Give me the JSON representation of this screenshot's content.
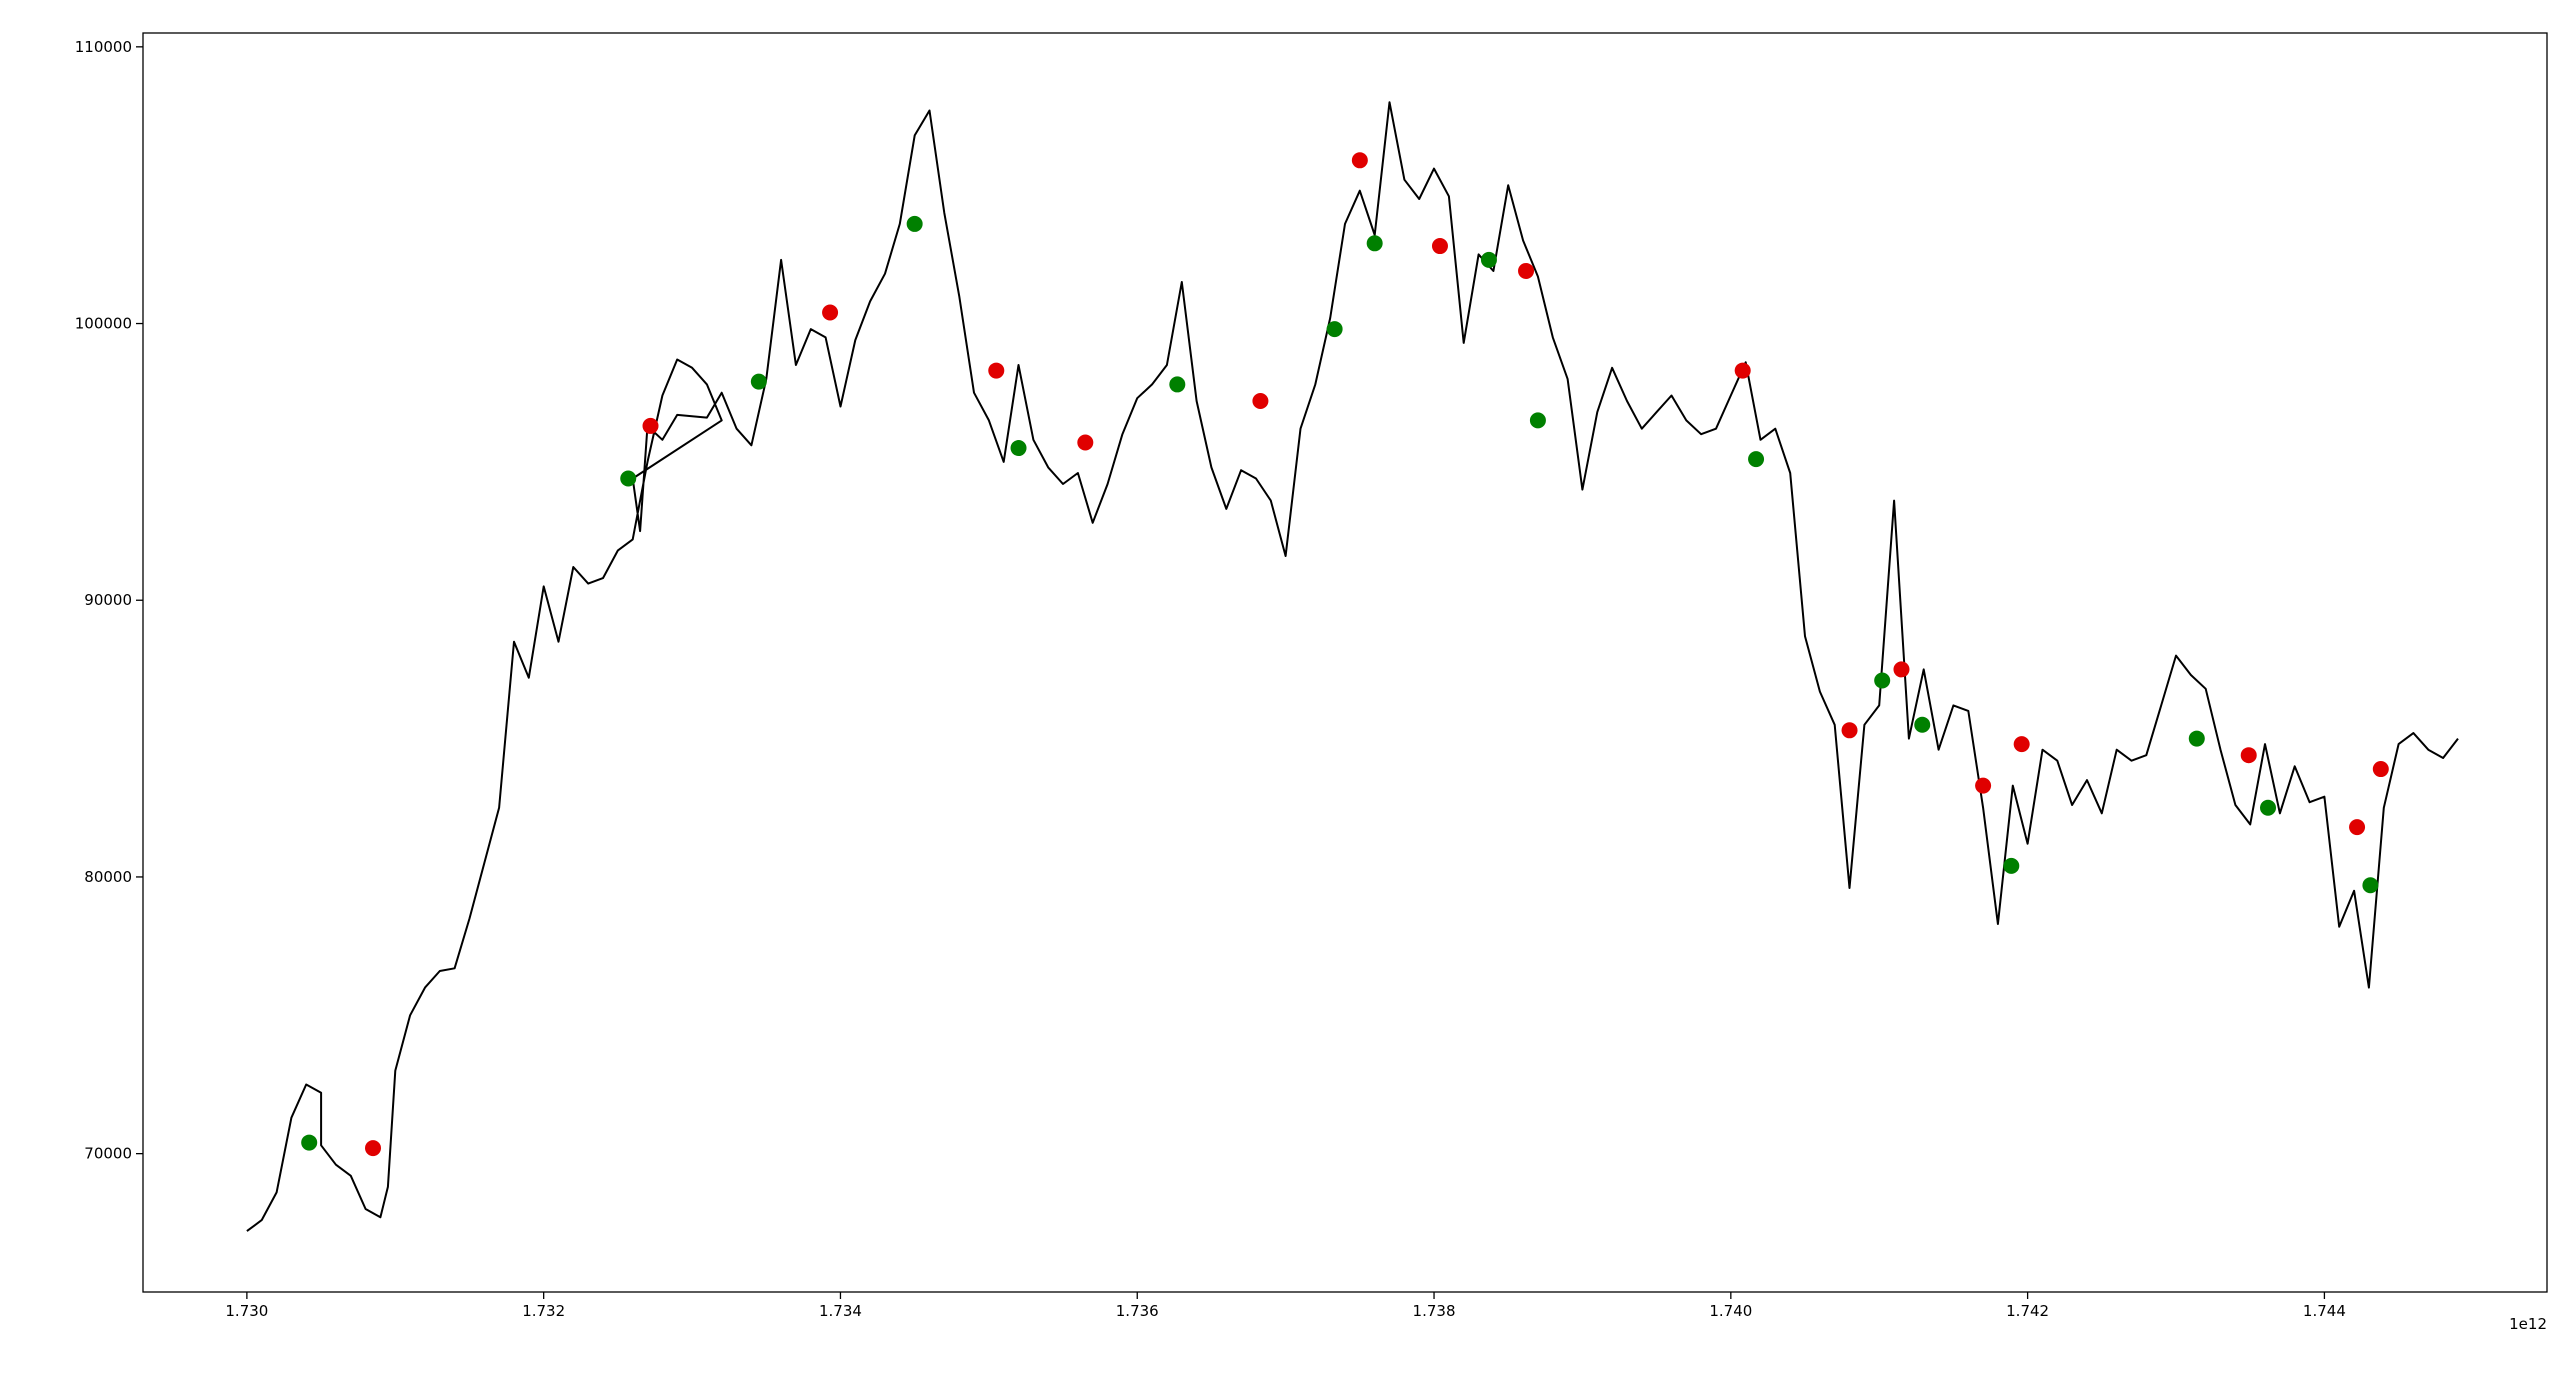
{
  "chart_data": {
    "type": "line",
    "x_offset_label": "1e12",
    "xlim": [
      1.7293,
      1.7455
    ],
    "ylim": [
      65000,
      110500
    ],
    "x_ticks": [
      {
        "value": 1.73,
        "label": "1.730"
      },
      {
        "value": 1.732,
        "label": "1.732"
      },
      {
        "value": 1.734,
        "label": "1.734"
      },
      {
        "value": 1.736,
        "label": "1.736"
      },
      {
        "value": 1.738,
        "label": "1.738"
      },
      {
        "value": 1.74,
        "label": "1.740"
      },
      {
        "value": 1.742,
        "label": "1.742"
      },
      {
        "value": 1.744,
        "label": "1.744"
      }
    ],
    "y_ticks": [
      {
        "value": 70000,
        "label": "70000"
      },
      {
        "value": 80000,
        "label": "80000"
      },
      {
        "value": 90000,
        "label": "90000"
      },
      {
        "value": 100000,
        "label": "100000"
      },
      {
        "value": 110000,
        "label": "110000"
      }
    ],
    "grid": false,
    "series": [
      {
        "color": "#000000",
        "points": [
          [
            1.73,
            67200
          ],
          [
            1.7301,
            67600
          ],
          [
            1.7302,
            68600
          ],
          [
            1.7303,
            71300
          ],
          [
            1.7304,
            72500
          ],
          [
            1.7305,
            72200
          ],
          [
            1.7305,
            70300
          ],
          [
            1.7306,
            69600
          ],
          [
            1.7307,
            69200
          ],
          [
            1.7308,
            68000
          ],
          [
            1.7309,
            67700
          ],
          [
            1.73095,
            68800
          ],
          [
            1.731,
            73000
          ],
          [
            1.7311,
            75000
          ],
          [
            1.7312,
            76000
          ],
          [
            1.7313,
            76600
          ],
          [
            1.7314,
            76700
          ],
          [
            1.7315,
            78500
          ],
          [
            1.7316,
            80500
          ],
          [
            1.7317,
            82500
          ],
          [
            1.7318,
            88500
          ],
          [
            1.7319,
            87200
          ],
          [
            1.732,
            90500
          ],
          [
            1.7321,
            88500
          ],
          [
            1.7322,
            91200
          ],
          [
            1.7323,
            90600
          ],
          [
            1.7324,
            90800
          ],
          [
            1.7325,
            91800
          ],
          [
            1.7326,
            92200
          ],
          [
            1.7327,
            95000
          ],
          [
            1.7328,
            97400
          ],
          [
            1.7329,
            98700
          ],
          [
            1.733,
            98400
          ],
          [
            1.7331,
            97800
          ],
          [
            1.7332,
            96500
          ],
          [
            1.7326,
            94400
          ],
          [
            1.73265,
            92500
          ],
          [
            1.7327,
            96300
          ],
          [
            1.7328,
            95800
          ],
          [
            1.7329,
            96700
          ],
          [
            1.7331,
            96600
          ],
          [
            1.7332,
            97500
          ],
          [
            1.7333,
            96200
          ],
          [
            1.7334,
            95600
          ],
          [
            1.7335,
            98000
          ],
          [
            1.7336,
            102300
          ],
          [
            1.7337,
            98500
          ],
          [
            1.7338,
            99800
          ],
          [
            1.7339,
            99500
          ],
          [
            1.734,
            97000
          ],
          [
            1.7341,
            99400
          ],
          [
            1.7342,
            100800
          ],
          [
            1.7343,
            101800
          ],
          [
            1.7344,
            103600
          ],
          [
            1.7345,
            106800
          ],
          [
            1.7346,
            107700
          ],
          [
            1.7347,
            104000
          ],
          [
            1.7348,
            101000
          ],
          [
            1.7349,
            97500
          ],
          [
            1.735,
            96500
          ],
          [
            1.7351,
            95000
          ],
          [
            1.7352,
            98500
          ],
          [
            1.7353,
            95800
          ],
          [
            1.7354,
            94800
          ],
          [
            1.7355,
            94200
          ],
          [
            1.7356,
            94600
          ],
          [
            1.7357,
            92800
          ],
          [
            1.7358,
            94200
          ],
          [
            1.7359,
            96000
          ],
          [
            1.736,
            97300
          ],
          [
            1.7361,
            97800
          ],
          [
            1.7362,
            98500
          ],
          [
            1.7363,
            101500
          ],
          [
            1.7364,
            97200
          ],
          [
            1.7365,
            94800
          ],
          [
            1.7366,
            93300
          ],
          [
            1.7367,
            94700
          ],
          [
            1.7368,
            94400
          ],
          [
            1.7369,
            93600
          ],
          [
            1.737,
            91600
          ],
          [
            1.7371,
            96200
          ],
          [
            1.7372,
            97800
          ],
          [
            1.7373,
            100200
          ],
          [
            1.7374,
            103600
          ],
          [
            1.7375,
            104800
          ],
          [
            1.7376,
            103200
          ],
          [
            1.7377,
            108000
          ],
          [
            1.7378,
            105200
          ],
          [
            1.7379,
            104500
          ],
          [
            1.738,
            105600
          ],
          [
            1.7381,
            104600
          ],
          [
            1.7382,
            99300
          ],
          [
            1.7383,
            102500
          ],
          [
            1.7384,
            101900
          ],
          [
            1.7385,
            105000
          ],
          [
            1.7386,
            103000
          ],
          [
            1.7387,
            101700
          ],
          [
            1.7388,
            99500
          ],
          [
            1.7389,
            98000
          ],
          [
            1.739,
            94000
          ],
          [
            1.7391,
            96800
          ],
          [
            1.7392,
            98400
          ],
          [
            1.7393,
            97200
          ],
          [
            1.7394,
            96200
          ],
          [
            1.7395,
            96800
          ],
          [
            1.7396,
            97400
          ],
          [
            1.7397,
            96500
          ],
          [
            1.7398,
            96000
          ],
          [
            1.7399,
            96200
          ],
          [
            1.74,
            97400
          ],
          [
            1.7401,
            98600
          ],
          [
            1.7402,
            95800
          ],
          [
            1.7403,
            96200
          ],
          [
            1.7404,
            94600
          ],
          [
            1.7405,
            88700
          ],
          [
            1.7406,
            86700
          ],
          [
            1.7407,
            85500
          ],
          [
            1.7408,
            79600
          ],
          [
            1.7409,
            85500
          ],
          [
            1.741,
            86200
          ],
          [
            1.7411,
            93600
          ],
          [
            1.7412,
            85000
          ],
          [
            1.7413,
            87500
          ],
          [
            1.7414,
            84600
          ],
          [
            1.7415,
            86200
          ],
          [
            1.7416,
            86000
          ],
          [
            1.7417,
            82500
          ],
          [
            1.7418,
            78300
          ],
          [
            1.7419,
            83300
          ],
          [
            1.742,
            81200
          ],
          [
            1.7421,
            84600
          ],
          [
            1.7422,
            84200
          ],
          [
            1.7423,
            82600
          ],
          [
            1.7424,
            83500
          ],
          [
            1.7425,
            82300
          ],
          [
            1.7426,
            84600
          ],
          [
            1.7427,
            84200
          ],
          [
            1.7428,
            84400
          ],
          [
            1.7429,
            86200
          ],
          [
            1.743,
            88000
          ],
          [
            1.7431,
            87300
          ],
          [
            1.7432,
            86800
          ],
          [
            1.7433,
            84600
          ],
          [
            1.7434,
            82600
          ],
          [
            1.7435,
            81900
          ],
          [
            1.7436,
            84800
          ],
          [
            1.7437,
            82300
          ],
          [
            1.7438,
            84000
          ],
          [
            1.7439,
            82700
          ],
          [
            1.744,
            82900
          ],
          [
            1.7441,
            78200
          ],
          [
            1.7442,
            79500
          ],
          [
            1.7443,
            76000
          ],
          [
            1.7444,
            82500
          ],
          [
            1.7445,
            84800
          ],
          [
            1.7446,
            85200
          ],
          [
            1.7447,
            84600
          ],
          [
            1.7448,
            84300
          ],
          [
            1.7449,
            85000
          ]
        ]
      },
      {
        "color": "#008000",
        "type": "scatter",
        "points": [
          [
            1.73042,
            70400
          ],
          [
            1.73257,
            94400
          ],
          [
            1.73345,
            97900
          ],
          [
            1.7345,
            103600
          ],
          [
            1.7352,
            95500
          ],
          [
            1.73627,
            97800
          ],
          [
            1.73733,
            99800
          ],
          [
            1.7376,
            102900
          ],
          [
            1.73837,
            102300
          ],
          [
            1.7387,
            96500
          ],
          [
            1.74017,
            95100
          ],
          [
            1.74102,
            87100
          ],
          [
            1.74129,
            85500
          ],
          [
            1.74189,
            80400
          ],
          [
            1.74314,
            85000
          ],
          [
            1.74362,
            82500
          ],
          [
            1.74431,
            79700
          ]
        ]
      },
      {
        "color": "#e00000",
        "type": "scatter",
        "points": [
          [
            1.73085,
            70200
          ],
          [
            1.73272,
            96300
          ],
          [
            1.73393,
            100400
          ],
          [
            1.73505,
            98300
          ],
          [
            1.73565,
            95700
          ],
          [
            1.73683,
            97200
          ],
          [
            1.7375,
            105900
          ],
          [
            1.73804,
            102800
          ],
          [
            1.73862,
            101900
          ],
          [
            1.74008,
            98300
          ],
          [
            1.7408,
            85300
          ],
          [
            1.74115,
            87500
          ],
          [
            1.7417,
            83300
          ],
          [
            1.74196,
            84800
          ],
          [
            1.74349,
            84400
          ],
          [
            1.74422,
            81800
          ],
          [
            1.74438,
            83900
          ]
        ]
      }
    ]
  }
}
